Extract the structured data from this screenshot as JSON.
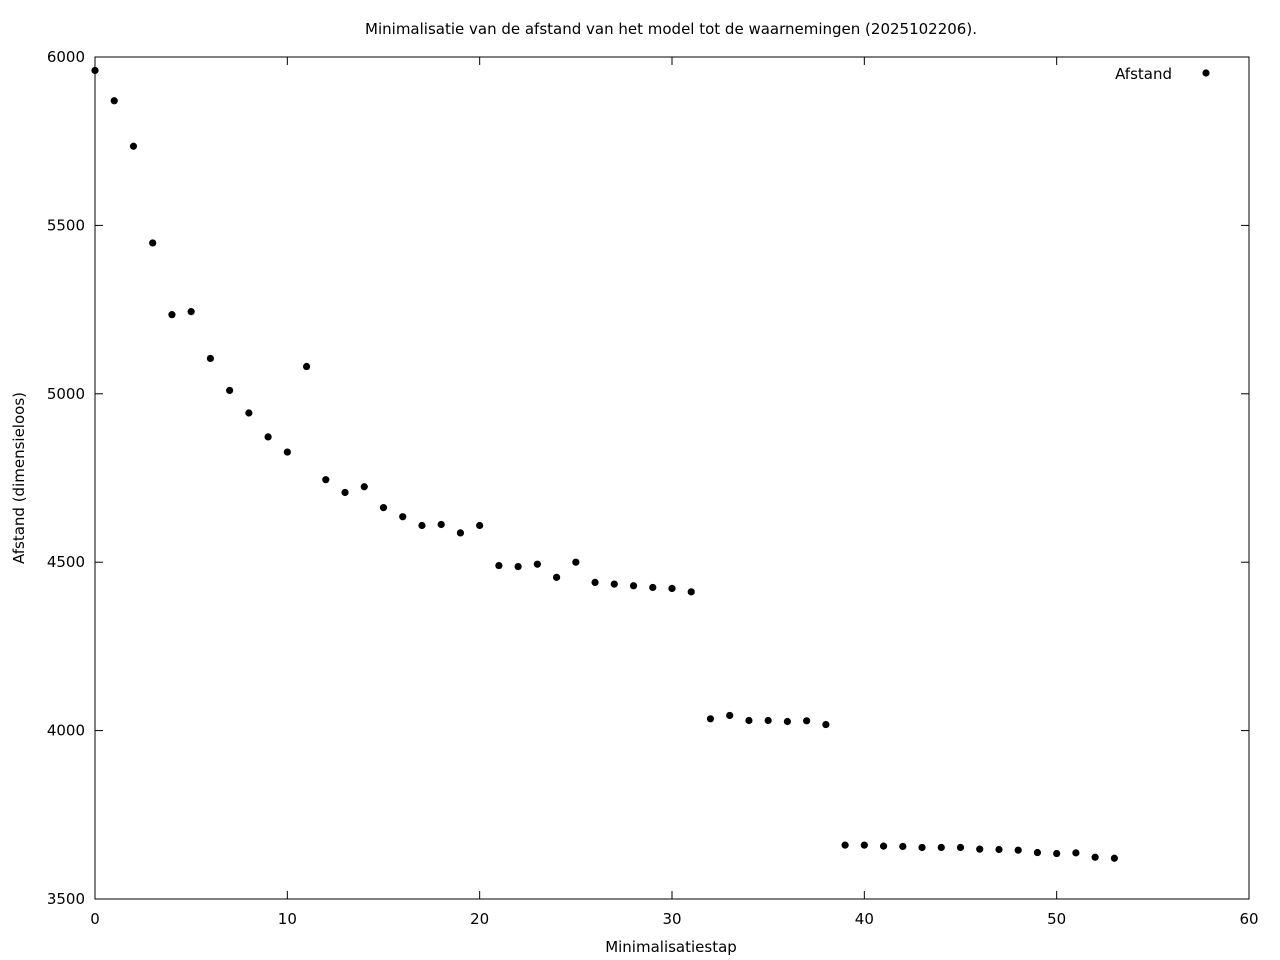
{
  "chart_data": {
    "type": "scatter",
    "title": "Minimalisatie van de afstand van het model tot de waarnemingen (2025102206).",
    "xlabel": "Minimalisatiestap",
    "ylabel": "Afstand (dimensieloos)",
    "xlim": [
      0,
      60
    ],
    "ylim": [
      3500,
      6000
    ],
    "xticks": [
      0,
      10,
      20,
      30,
      40,
      50,
      60
    ],
    "yticks": [
      3500,
      4000,
      4500,
      5000,
      5500,
      6000
    ],
    "grid": false,
    "legend_position": "top-right",
    "marker_color": "#000000",
    "series": [
      {
        "name": "Afstand",
        "x": [
          0,
          1,
          2,
          3,
          4,
          5,
          6,
          7,
          8,
          9,
          10,
          11,
          12,
          13,
          14,
          15,
          16,
          17,
          18,
          19,
          20,
          21,
          22,
          23,
          24,
          25,
          26,
          27,
          28,
          29,
          30,
          31,
          32,
          33,
          34,
          35,
          36,
          37,
          38,
          39,
          40,
          41,
          42,
          43,
          44,
          45,
          46,
          47,
          48,
          49,
          50,
          51,
          52,
          53
        ],
        "y": [
          5960,
          5870,
          5735,
          5448,
          5235,
          5244,
          5105,
          5010,
          4943,
          4872,
          4827,
          5081,
          4745,
          4707,
          4724,
          4662,
          4635,
          4609,
          4612,
          4587,
          4609,
          4490,
          4487,
          4494,
          4455,
          4500,
          4440,
          4435,
          4430,
          4425,
          4422,
          4412,
          4035,
          4045,
          4030,
          4030,
          4027,
          4029,
          4018,
          3660,
          3660,
          3657,
          3656,
          3653,
          3653,
          3653,
          3648,
          3647,
          3645,
          3638,
          3635,
          3637,
          3624,
          3621
        ]
      }
    ]
  }
}
